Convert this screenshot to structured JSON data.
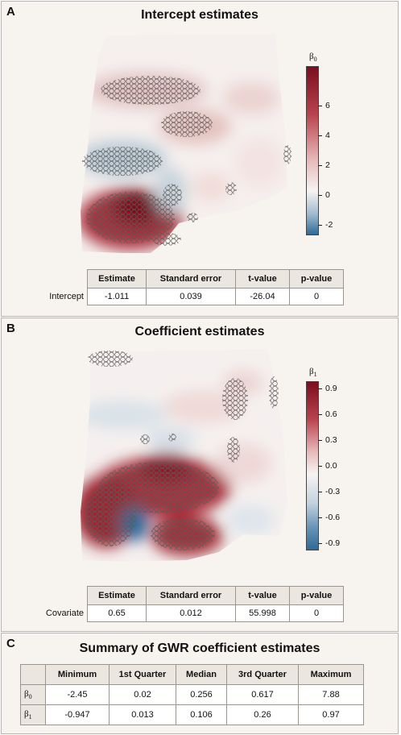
{
  "panels": [
    {
      "letter": "A",
      "title": "Intercept estimates",
      "legend_symbol": "β",
      "legend_subscript": "0",
      "legend_ticks": [
        "6",
        "4",
        "2",
        "0",
        "-2"
      ],
      "table": {
        "headers": [
          "Estimate",
          "Standard error",
          "t-value",
          "p-value"
        ],
        "row_label": "Intercept",
        "values": [
          "-1.011",
          "0.039",
          "-26.04",
          "0"
        ]
      }
    },
    {
      "letter": "B",
      "title": "Coefficient estimates",
      "legend_symbol": "β",
      "legend_subscript": "1",
      "legend_ticks": [
        "0.9",
        "0.6",
        "0.3",
        "0.0",
        "-0.3",
        "-0.6",
        "-0.9"
      ],
      "table": {
        "headers": [
          "Estimate",
          "Standard error",
          "t-value",
          "p-value"
        ],
        "row_label": "Covariate",
        "values": [
          "0.65",
          "0.012",
          "55.998",
          "0"
        ]
      }
    }
  ],
  "summary": {
    "letter": "C",
    "title": "Summary of GWR coefficient estimates",
    "headers": [
      "Minimum",
      "1st Quarter",
      "Median",
      "3rd Quarter",
      "Maximum"
    ],
    "rows": [
      {
        "symbol": "β",
        "subscript": "0",
        "values": [
          "-2.45",
          "0.02",
          "0.256",
          "0.617",
          "7.88"
        ]
      },
      {
        "symbol": "β",
        "subscript": "1",
        "values": [
          "-0.947",
          "0.013",
          "0.106",
          "0.26",
          "0.97"
        ]
      }
    ]
  },
  "colors": {
    "diverging_high": "#7a0f1f",
    "diverging_mid": "#f7f3f2",
    "diverging_low": "#2f6a97",
    "hex_outline": "#6e6a68"
  }
}
